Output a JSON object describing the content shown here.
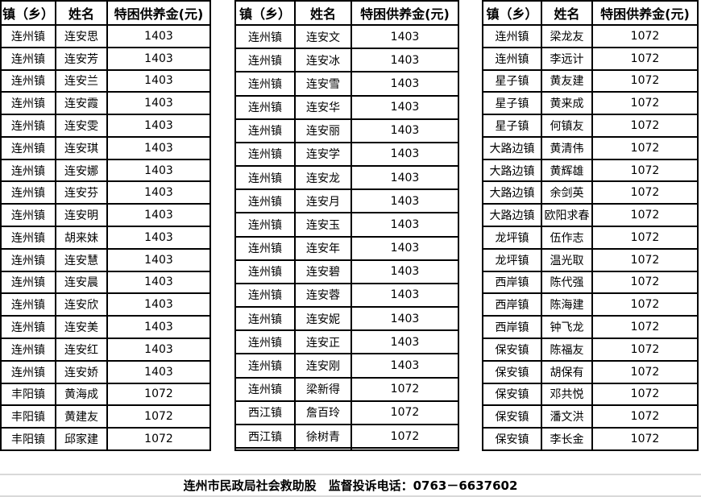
{
  "columns": [
    "镇（乡）",
    "姓名",
    "特困供养金(元)"
  ],
  "tables": [
    {
      "rows": [
        {
          "town": "连州镇",
          "name": "连安思",
          "amount": "1403"
        },
        {
          "town": "连州镇",
          "name": "连安芳",
          "amount": "1403"
        },
        {
          "town": "连州镇",
          "name": "连安兰",
          "amount": "1403"
        },
        {
          "town": "连州镇",
          "name": "连安霞",
          "amount": "1403"
        },
        {
          "town": "连州镇",
          "name": "连安雯",
          "amount": "1403"
        },
        {
          "town": "连州镇",
          "name": "连安琪",
          "amount": "1403"
        },
        {
          "town": "连州镇",
          "name": "连安娜",
          "amount": "1403"
        },
        {
          "town": "连州镇",
          "name": "连安芬",
          "amount": "1403"
        },
        {
          "town": "连州镇",
          "name": "连安明",
          "amount": "1403"
        },
        {
          "town": "连州镇",
          "name": "胡来妹",
          "amount": "1403"
        },
        {
          "town": "连州镇",
          "name": "连安慧",
          "amount": "1403"
        },
        {
          "town": "连州镇",
          "name": "连安晨",
          "amount": "1403"
        },
        {
          "town": "连州镇",
          "name": "连安欣",
          "amount": "1403"
        },
        {
          "town": "连州镇",
          "name": "连安美",
          "amount": "1403"
        },
        {
          "town": "连州镇",
          "name": "连安红",
          "amount": "1403"
        },
        {
          "town": "连州镇",
          "name": "连安娇",
          "amount": "1403"
        },
        {
          "town": "丰阳镇",
          "name": "黄海成",
          "amount": "1072"
        },
        {
          "town": "丰阳镇",
          "name": "黄建友",
          "amount": "1072"
        },
        {
          "town": "丰阳镇",
          "name": "邱家建",
          "amount": "1072"
        }
      ]
    },
    {
      "rows": [
        {
          "town": "连州镇",
          "name": "连安文",
          "amount": "1403"
        },
        {
          "town": "连州镇",
          "name": "连安冰",
          "amount": "1403"
        },
        {
          "town": "连州镇",
          "name": "连安雪",
          "amount": "1403"
        },
        {
          "town": "连州镇",
          "name": "连安华",
          "amount": "1403"
        },
        {
          "town": "连州镇",
          "name": "连安丽",
          "amount": "1403"
        },
        {
          "town": "连州镇",
          "name": "连安学",
          "amount": "1403"
        },
        {
          "town": "连州镇",
          "name": "连安龙",
          "amount": "1403"
        },
        {
          "town": "连州镇",
          "name": "连安月",
          "amount": "1403"
        },
        {
          "town": "连州镇",
          "name": "连安玉",
          "amount": "1403"
        },
        {
          "town": "连州镇",
          "name": "连安年",
          "amount": "1403"
        },
        {
          "town": "连州镇",
          "name": "连安碧",
          "amount": "1403"
        },
        {
          "town": "连州镇",
          "name": "连安蓉",
          "amount": "1403"
        },
        {
          "town": "连州镇",
          "name": "连安妮",
          "amount": "1403"
        },
        {
          "town": "连州镇",
          "name": "连安正",
          "amount": "1403"
        },
        {
          "town": "连州镇",
          "name": "连安刚",
          "amount": "1403"
        },
        {
          "town": "连州镇",
          "name": "梁新得",
          "amount": "1072"
        },
        {
          "town": "西江镇",
          "name": "詹百玲",
          "amount": "1072"
        },
        {
          "town": "西江镇",
          "name": "徐树青",
          "amount": "1072"
        },
        {
          "town": "",
          "name": "",
          "amount": ""
        }
      ]
    },
    {
      "rows": [
        {
          "town": "连州镇",
          "name": "梁龙友",
          "amount": "1072"
        },
        {
          "town": "连州镇",
          "name": "李远计",
          "amount": "1072"
        },
        {
          "town": "星子镇",
          "name": "黄友建",
          "amount": "1072"
        },
        {
          "town": "星子镇",
          "name": "黄来成",
          "amount": "1072"
        },
        {
          "town": "星子镇",
          "name": "何镇友",
          "amount": "1072"
        },
        {
          "town": "大路边镇",
          "name": "黄清伟",
          "amount": "1072"
        },
        {
          "town": "大路边镇",
          "name": "黄辉雄",
          "amount": "1072"
        },
        {
          "town": "大路边镇",
          "name": "余剑英",
          "amount": "1072"
        },
        {
          "town": "大路边镇",
          "name": "欧阳求春",
          "amount": "1072"
        },
        {
          "town": "龙坪镇",
          "name": "伍作志",
          "amount": "1072"
        },
        {
          "town": "龙坪镇",
          "name": "温光取",
          "amount": "1072"
        },
        {
          "town": "西岸镇",
          "name": "陈代强",
          "amount": "1072"
        },
        {
          "town": "西岸镇",
          "name": "陈海建",
          "amount": "1072"
        },
        {
          "town": "西岸镇",
          "name": "钟飞龙",
          "amount": "1072"
        },
        {
          "town": "保安镇",
          "name": "陈福友",
          "amount": "1072"
        },
        {
          "town": "保安镇",
          "name": "胡保有",
          "amount": "1072"
        },
        {
          "town": "保安镇",
          "name": "邓共悦",
          "amount": "1072"
        },
        {
          "town": "保安镇",
          "name": "潘文洪",
          "amount": "1072"
        },
        {
          "town": "保安镇",
          "name": "李长金",
          "amount": "1072"
        }
      ]
    }
  ],
  "footer": {
    "text": "连州市民政局社会救助股　监督投诉电话：0763－6637602"
  },
  "colors": {
    "table_border": "#000000",
    "footer_divider": "#d9d9d9",
    "background": "#ffffff",
    "text": "#000000"
  }
}
